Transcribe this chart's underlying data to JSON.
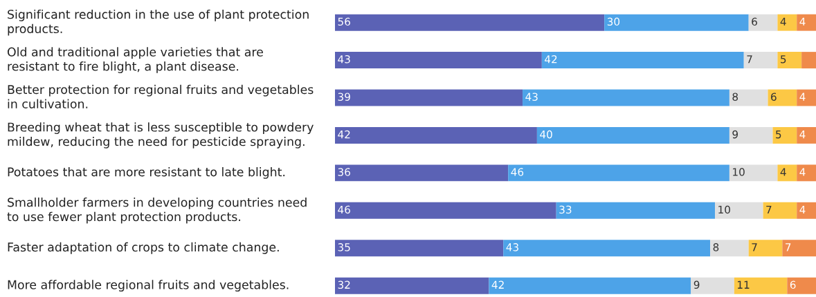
{
  "chart_data": {
    "type": "bar",
    "orientation": "horizontal",
    "stacked": true,
    "categories": [
      "Significant reduction in the use of plant protection\nproducts.",
      "Old and traditional apple varieties that are\nresistant to fire blight, a plant disease.",
      "Better protection for regional fruits and vegetables\nin cultivation.",
      "Breeding wheat that is less susceptible to powdery\nmildew, reducing the need for pesticide spraying.",
      "Potatoes that are more resistant to late blight.",
      "Smallholder farmers in developing countries need\nto use fewer plant protection products.",
      "Faster adaptation of crops to climate change.",
      "More affordable regional fruits and vegetables."
    ],
    "series": [
      {
        "color": "#5b62b5",
        "values": [
          56,
          43,
          39,
          42,
          36,
          46,
          35,
          32
        ],
        "value_labels": [
          "56",
          "43",
          "39",
          "42",
          "36",
          "46",
          "35",
          "32"
        ]
      },
      {
        "color": "#4da3e8",
        "values": [
          30,
          42,
          43,
          40,
          46,
          33,
          43,
          42
        ],
        "value_labels": [
          "30",
          "42",
          "43",
          "40",
          "46",
          "33",
          "43",
          "42"
        ]
      },
      {
        "color": "#e0e0e0",
        "values": [
          6,
          7,
          8,
          9,
          10,
          10,
          8,
          9
        ],
        "value_labels": [
          "6",
          "7",
          "8",
          "9",
          "10",
          "10",
          "8",
          "9"
        ]
      },
      {
        "color": "#fcc845",
        "values": [
          4,
          5,
          6,
          5,
          4,
          7,
          7,
          11
        ],
        "value_labels": [
          "4",
          "5",
          "6",
          "5",
          "4",
          "7",
          "7",
          "11"
        ]
      },
      {
        "color": "#ef8a4b",
        "values": [
          4,
          3,
          4,
          4,
          4,
          4,
          7,
          6
        ],
        "value_labels": [
          "4",
          null,
          "4",
          "4",
          "4",
          "4",
          "7",
          "6"
        ]
      }
    ],
    "xlim": [
      0,
      100
    ]
  }
}
